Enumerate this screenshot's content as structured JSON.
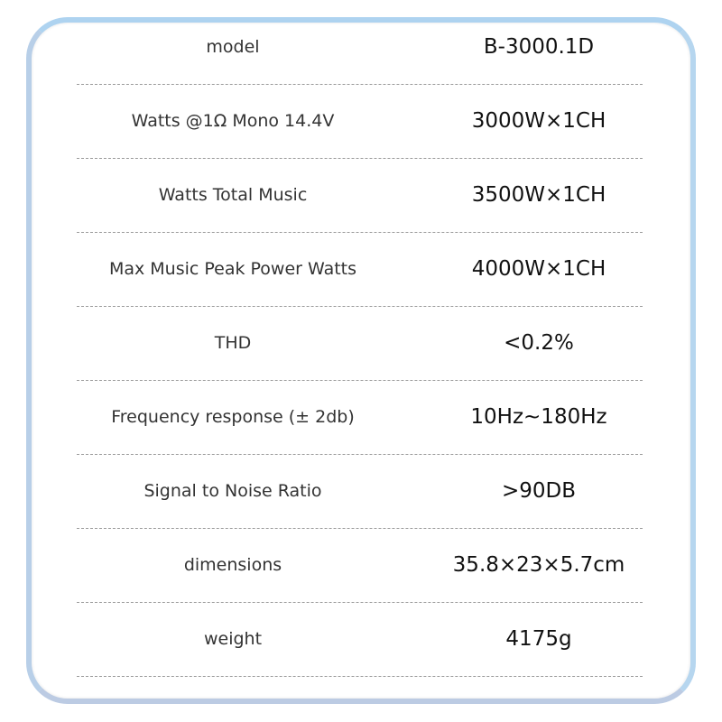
{
  "specs": [
    {
      "label": "model",
      "value": "B-3000.1D"
    },
    {
      "label": "Watts @1Ω Mono 14.4V",
      "value": "3000W×1CH"
    },
    {
      "label": "Watts Total Music",
      "value": "3500W×1CH"
    },
    {
      "label": "Max Music Peak Power Watts",
      "value": "4000W×1CH"
    },
    {
      "label": "THD",
      "value": "<0.2%"
    },
    {
      "label": "Frequency response (± 2db)",
      "value": "10Hz~180Hz"
    },
    {
      "label": "Signal to Noise Ratio",
      "value": ">90DB"
    },
    {
      "label": "dimensions",
      "value": "35.8×23×5.7cm"
    },
    {
      "label": "weight",
      "value": "4175g"
    }
  ],
  "colors": {
    "frame": "#b3d4ee",
    "divider": "#9a9a9a"
  }
}
